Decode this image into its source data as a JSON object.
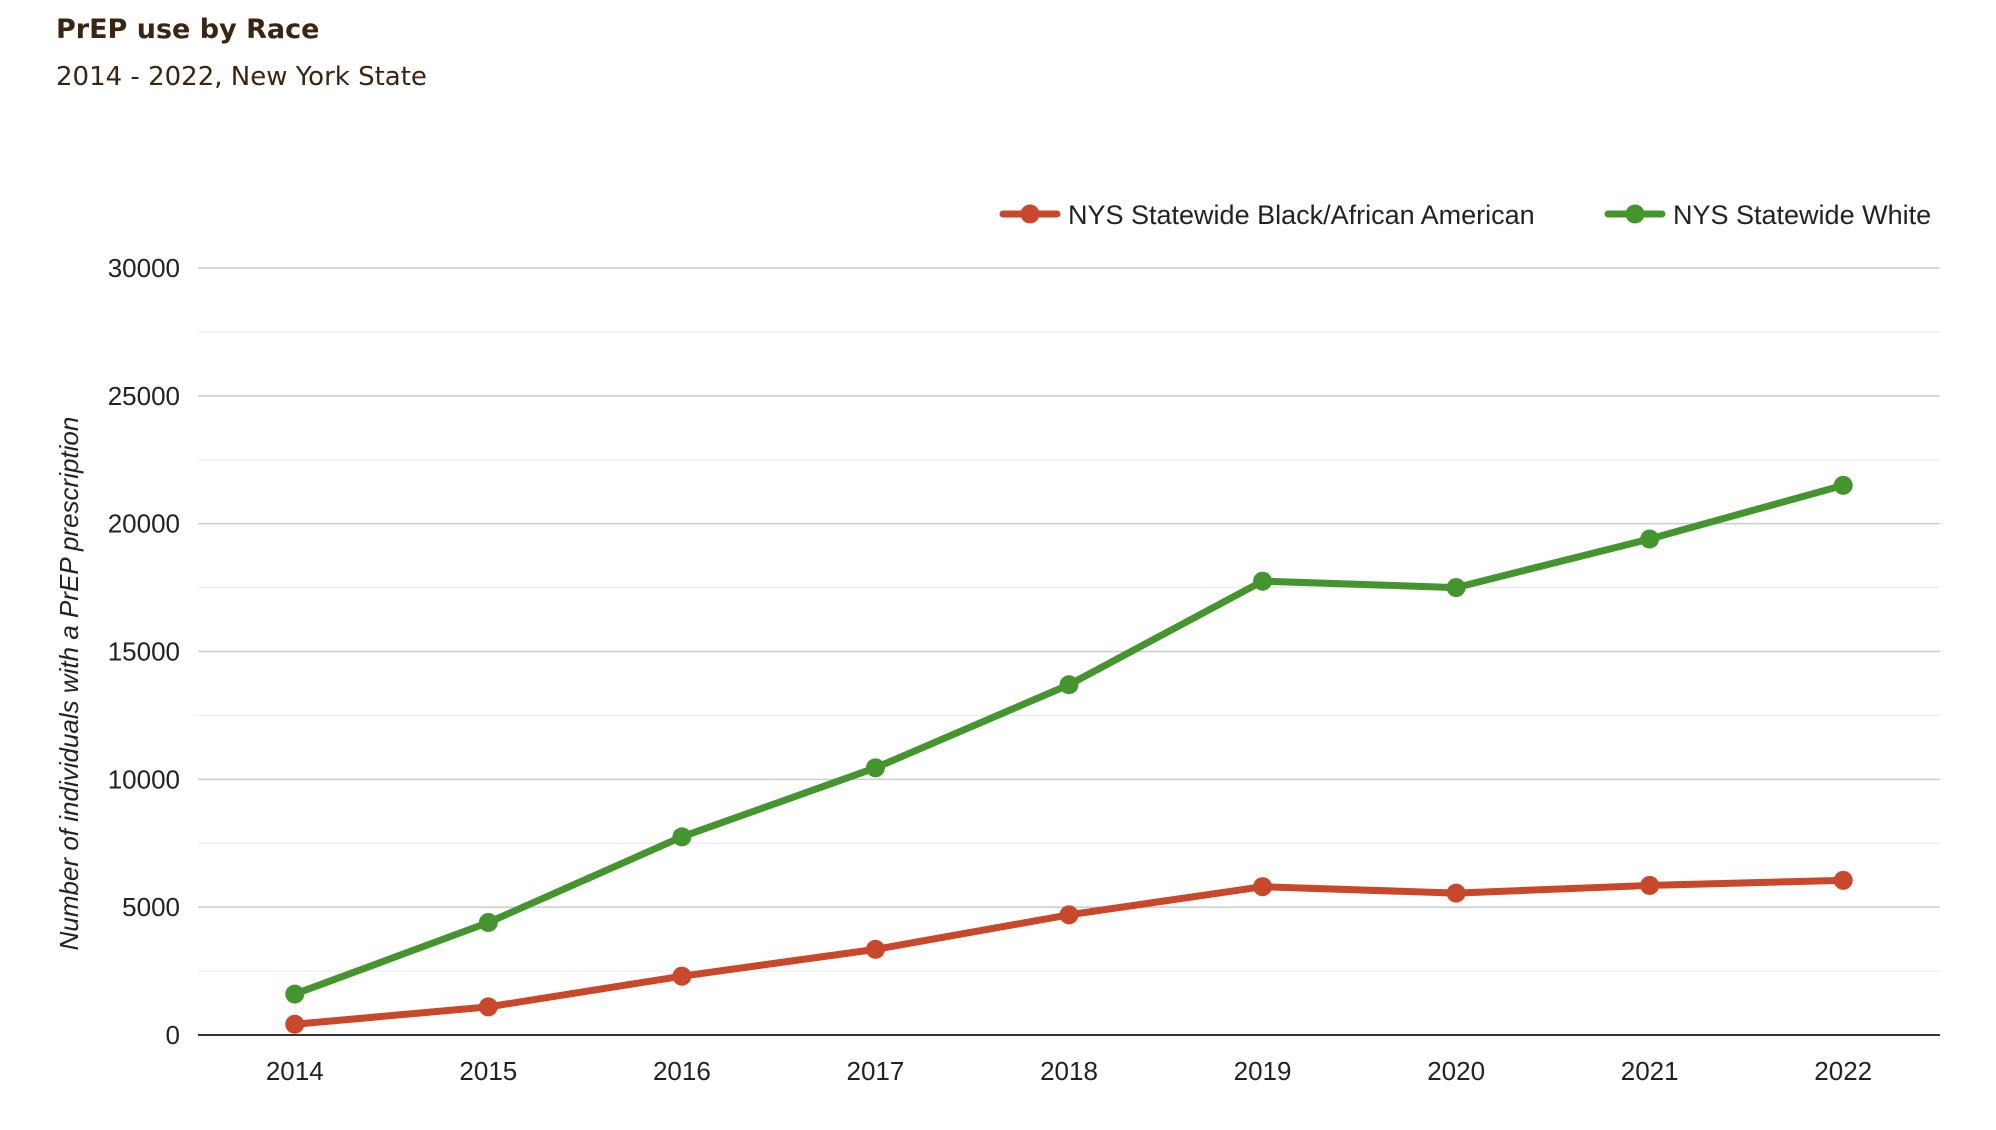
{
  "header": {
    "title": "PrEP use by Race",
    "subtitle": "2014 - 2022, New York State"
  },
  "chart_data": {
    "type": "line",
    "title": "PrEP use by Race",
    "subtitle": "2014 - 2022, New York State",
    "xlabel": "",
    "ylabel": "Number of individuals with a PrEP prescription",
    "categories": [
      "2014",
      "2015",
      "2016",
      "2017",
      "2018",
      "2019",
      "2020",
      "2021",
      "2022"
    ],
    "ylim": [
      0,
      30000
    ],
    "yticks": [
      "0",
      "5000",
      "10000",
      "15000",
      "20000",
      "25000",
      "30000"
    ],
    "grid": true,
    "legend_position": "top-right",
    "series": [
      {
        "name": "NYS Statewide Black/African American",
        "color": "#c9472b",
        "values": [
          420,
          1100,
          2300,
          3350,
          4700,
          5800,
          5550,
          5850,
          6050
        ]
      },
      {
        "name": "NYS Statewide White",
        "color": "#45952f",
        "values": [
          1600,
          4400,
          7750,
          10450,
          13700,
          17750,
          17500,
          19400,
          21500
        ]
      }
    ]
  }
}
